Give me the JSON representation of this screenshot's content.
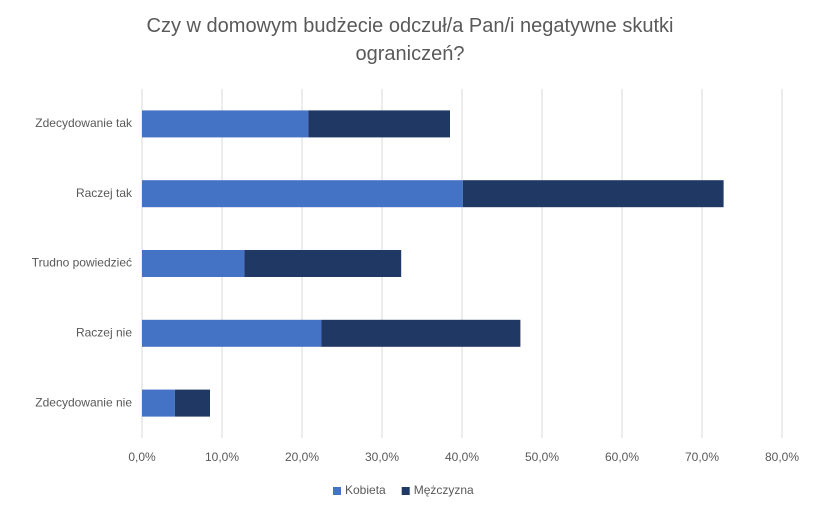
{
  "chart_data": {
    "type": "stacked_bar_horizontal",
    "title": "Czy w domowym budżecie odczuł/a Pan/i negatywne skutki ograniczeń?",
    "categories": [
      "Zdecydowanie tak",
      "Raczej tak",
      "Trudno powiedzieć",
      "Raczej nie",
      "Zdecydowanie nie"
    ],
    "series": [
      {
        "name": "Kobieta",
        "color": "#4472c4",
        "values": [
          20.8,
          40.1,
          12.8,
          22.4,
          4.1
        ]
      },
      {
        "name": "Mężczyzna",
        "color": "#203864",
        "values": [
          17.7,
          32.6,
          19.6,
          24.9,
          4.4
        ]
      }
    ],
    "xlim": [
      0,
      80
    ],
    "xticks": [
      {
        "value": 0,
        "label": "0,0%"
      },
      {
        "value": 10,
        "label": "10,0%"
      },
      {
        "value": 20,
        "label": "20,0%"
      },
      {
        "value": 30,
        "label": "30,0%"
      },
      {
        "value": 40,
        "label": "40,0%"
      },
      {
        "value": 50,
        "label": "50,0%"
      },
      {
        "value": 60,
        "label": "60,0%"
      },
      {
        "value": 70,
        "label": "70,0%"
      },
      {
        "value": 80,
        "label": "80,0%"
      }
    ],
    "grid": true,
    "legend": "bottom"
  }
}
